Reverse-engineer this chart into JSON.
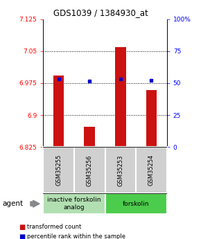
{
  "title": "GDS1039 / 1384930_at",
  "samples": [
    "GSM35255",
    "GSM35256",
    "GSM35253",
    "GSM35254"
  ],
  "red_values": [
    6.993,
    6.872,
    7.06,
    6.958
  ],
  "blue_values": [
    6.984,
    6.979,
    6.984,
    6.981
  ],
  "ylim_left": [
    6.825,
    7.125
  ],
  "ylim_right": [
    0,
    100
  ],
  "yticks_left": [
    6.825,
    6.9,
    6.975,
    7.05,
    7.125
  ],
  "yticks_right": [
    0,
    25,
    50,
    75,
    100
  ],
  "ytick_labels_left": [
    "6.825",
    "6.9",
    "6.975",
    "7.05",
    "7.125"
  ],
  "ytick_labels_right": [
    "0",
    "25",
    "50",
    "75",
    "100%"
  ],
  "bar_bottom": 6.825,
  "groups": [
    {
      "label": "inactive forskolin\nanalog",
      "samples": [
        0,
        1
      ],
      "color": "#b2dfb2"
    },
    {
      "label": "forskolin",
      "samples": [
        2,
        3
      ],
      "color": "#4ccc4c"
    }
  ],
  "agent_label": "agent",
  "legend_red": "transformed count",
  "legend_blue": "percentile rank within the sample",
  "bar_width": 0.35,
  "bar_color": "#cc1111",
  "dot_color": "#0000cc",
  "sample_box_color": "#d0d0d0"
}
